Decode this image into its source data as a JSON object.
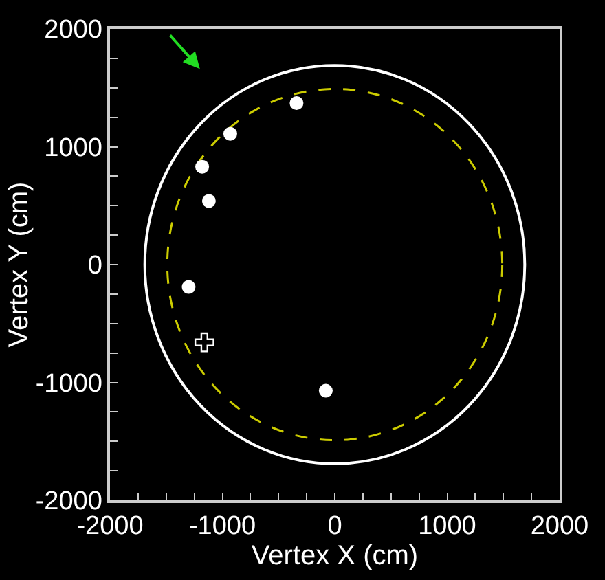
{
  "chart_data": {
    "type": "scatter",
    "xlabel": "Vertex X (cm)",
    "ylabel": "Vertex Y (cm)",
    "xlim": [
      -2000,
      2000
    ],
    "ylim": [
      -2000,
      2000
    ],
    "xticks": [
      -2000,
      {
        "value": -1750,
        "label": null
      },
      {
        "value": -1500,
        "label": null
      },
      {
        "value": -1250,
        "label": null
      },
      -1000,
      {
        "value": -750,
        "label": null
      },
      {
        "value": -500,
        "label": null
      },
      {
        "value": -250,
        "label": null
      },
      0,
      {
        "value": 250,
        "label": null
      },
      {
        "value": 500,
        "label": null
      },
      {
        "value": 750,
        "label": null
      },
      1000,
      {
        "value": 1250,
        "label": null
      },
      {
        "value": 1500,
        "label": null
      },
      {
        "value": 1750,
        "label": null
      },
      2000
    ],
    "yticks": [
      -2000,
      {
        "value": -1750,
        "label": null
      },
      {
        "value": -1500,
        "label": null
      },
      {
        "value": -1250,
        "label": null
      },
      -1000,
      {
        "value": -750,
        "label": null
      },
      {
        "value": -500,
        "label": null
      },
      {
        "value": -250,
        "label": null
      },
      0,
      {
        "value": 250,
        "label": null
      },
      {
        "value": 500,
        "label": null
      },
      {
        "value": 750,
        "label": null
      },
      1000,
      {
        "value": 1250,
        "label": null
      },
      {
        "value": 1500,
        "label": null
      },
      {
        "value": 1750,
        "label": null
      },
      2000
    ],
    "grid": false,
    "series": [
      {
        "color": "#ffffff",
        "marker": "circle",
        "x": [
          -340,
          -930,
          -1180,
          -1120,
          -1300,
          -80
        ],
        "values": [
          1370,
          1110,
          830,
          540,
          -190,
          -1070
        ]
      },
      {
        "color": "#ffffff",
        "marker": "cross",
        "x": [
          -1160
        ],
        "values": [
          -660
        ]
      }
    ]
  }
}
